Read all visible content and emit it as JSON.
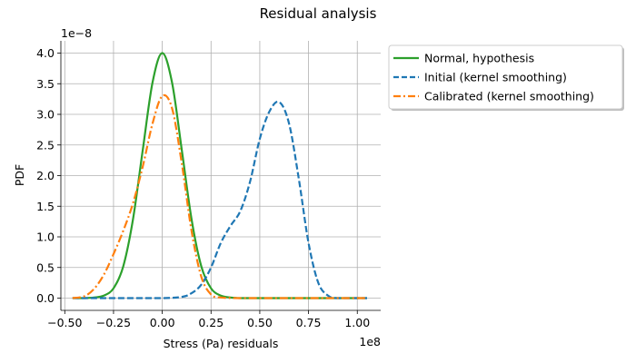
{
  "chart_data": {
    "type": "line",
    "title": "Residual analysis",
    "xlabel": "Stress (Pa) residuals",
    "ylabel": "PDF",
    "x_offset_label": "1e8",
    "y_offset_label": "1e−8",
    "x_scale": 100000000,
    "y_scale": 1e-08,
    "xlim": [
      -0.52,
      1.12
    ],
    "ylim": [
      -0.2,
      4.2
    ],
    "xticks": [
      -0.5,
      -0.25,
      0.0,
      0.25,
      0.5,
      0.75,
      1.0
    ],
    "xtick_labels": [
      "−0.50",
      "−0.25",
      "0.00",
      "0.25",
      "0.50",
      "0.75",
      "1.00"
    ],
    "yticks": [
      0.0,
      0.5,
      1.0,
      1.5,
      2.0,
      2.5,
      3.0,
      3.5,
      4.0
    ],
    "ytick_labels": [
      "0.0",
      "0.5",
      "1.0",
      "1.5",
      "2.0",
      "2.5",
      "3.0",
      "3.5",
      "4.0"
    ],
    "grid": true,
    "legend": "outside-right-top",
    "series": [
      {
        "name": "Normal, hypothesis",
        "color": "#2ca02c",
        "style": "solid",
        "x": [
          -0.46,
          -0.4,
          -0.35,
          -0.3,
          -0.25,
          -0.2,
          -0.15,
          -0.1,
          -0.05,
          0.0,
          0.05,
          0.1,
          0.15,
          0.2,
          0.25,
          0.3,
          0.35,
          0.4,
          0.5,
          0.6,
          0.8,
          1.05
        ],
        "y": [
          0.0,
          0.0,
          0.01,
          0.04,
          0.16,
          0.52,
          1.29,
          2.42,
          3.52,
          4.0,
          3.52,
          2.42,
          1.29,
          0.52,
          0.16,
          0.04,
          0.01,
          0.0,
          0.0,
          0.0,
          0.0,
          0.0
        ]
      },
      {
        "name": "Initial (kernel smoothing)",
        "color": "#1f77b4",
        "style": "dashed",
        "x": [
          -0.46,
          -0.2,
          0.0,
          0.1,
          0.15,
          0.2,
          0.25,
          0.3,
          0.35,
          0.4,
          0.45,
          0.5,
          0.55,
          0.6,
          0.65,
          0.7,
          0.75,
          0.8,
          0.85,
          0.9,
          1.05
        ],
        "y": [
          0.0,
          0.0,
          0.0,
          0.02,
          0.08,
          0.22,
          0.5,
          0.9,
          1.18,
          1.42,
          1.9,
          2.6,
          3.05,
          3.2,
          2.85,
          1.95,
          0.9,
          0.25,
          0.04,
          0.0,
          0.0
        ]
      },
      {
        "name": "Calibrated (kernel smoothing)",
        "color": "#ff7f0e",
        "style": "dashdot",
        "x": [
          -0.46,
          -0.4,
          -0.35,
          -0.3,
          -0.25,
          -0.2,
          -0.15,
          -0.1,
          -0.05,
          0.0,
          0.05,
          0.1,
          0.15,
          0.2,
          0.25,
          0.3,
          0.4,
          0.6,
          0.8,
          1.05
        ],
        "y": [
          0.0,
          0.03,
          0.15,
          0.38,
          0.72,
          1.1,
          1.55,
          2.15,
          2.85,
          3.3,
          3.1,
          2.2,
          1.1,
          0.35,
          0.06,
          0.01,
          0.0,
          0.0,
          0.0,
          0.0
        ]
      }
    ]
  }
}
